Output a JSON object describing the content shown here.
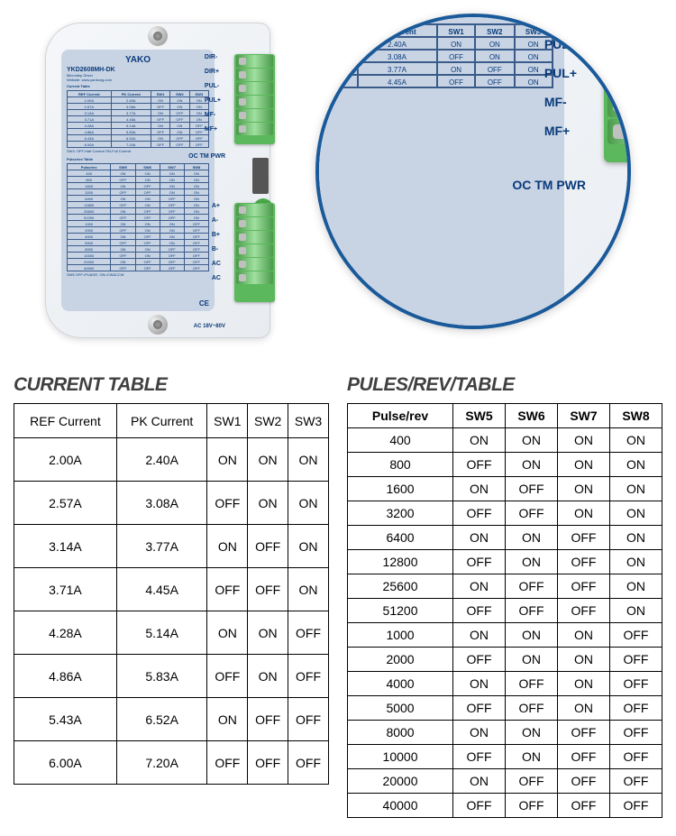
{
  "product": {
    "brand": "YAKO",
    "model": "YKD2608MH-DK",
    "type": "Microstep Driver",
    "website": "Website: www.yankong.com",
    "signal_label": "Signal +(5~24V)",
    "pc_label": "P&C Setting",
    "hv_label": "High Voltage",
    "signal_pins": [
      "DIR-",
      "DIR+",
      "PUL-",
      "PUL+",
      "MF-",
      "MF+"
    ],
    "sw_pins_top": [
      "SW9",
      "SW8",
      "SW7",
      "SW6",
      "SW5",
      "SW4",
      "SW3",
      "SW2",
      "SW1"
    ],
    "oc_tm_pwr": "OC  TM  PWR",
    "ac_note": "AC 18V~80V",
    "hv_pins": [
      "A+",
      "A-",
      "B+",
      "B-",
      "AC",
      "AC"
    ],
    "footer_note": "SW6 OFF=PU&DR, ON=CW&CCW",
    "sw4_note": "SW4: OFF-Half Current  ON-Full Current",
    "ce": "CE"
  },
  "current_table": {
    "title": "CURRENT TABLE",
    "columns": [
      "REF Current",
      "PK Current",
      "SW1",
      "SW2",
      "SW3"
    ],
    "rows": [
      [
        "2.00A",
        "2.40A",
        "ON",
        "ON",
        "ON"
      ],
      [
        "2.57A",
        "3.08A",
        "OFF",
        "ON",
        "ON"
      ],
      [
        "3.14A",
        "3.77A",
        "ON",
        "OFF",
        "ON"
      ],
      [
        "3.71A",
        "4.45A",
        "OFF",
        "OFF",
        "ON"
      ],
      [
        "4.28A",
        "5.14A",
        "ON",
        "ON",
        "OFF"
      ],
      [
        "4.86A",
        "5.83A",
        "OFF",
        "ON",
        "OFF"
      ],
      [
        "5.43A",
        "6.52A",
        "ON",
        "OFF",
        "OFF"
      ],
      [
        "6.00A",
        "7.20A",
        "OFF",
        "OFF",
        "OFF"
      ]
    ]
  },
  "pulse_table": {
    "title": "PULES/REV/TABLE",
    "columns": [
      "Pulse/rev",
      "SW5",
      "SW6",
      "SW7",
      "SW8"
    ],
    "rows": [
      [
        "400",
        "ON",
        "ON",
        "ON",
        "ON"
      ],
      [
        "800",
        "OFF",
        "ON",
        "ON",
        "ON"
      ],
      [
        "1600",
        "ON",
        "OFF",
        "ON",
        "ON"
      ],
      [
        "3200",
        "OFF",
        "OFF",
        "ON",
        "ON"
      ],
      [
        "6400",
        "ON",
        "ON",
        "OFF",
        "ON"
      ],
      [
        "12800",
        "OFF",
        "ON",
        "OFF",
        "ON"
      ],
      [
        "25600",
        "ON",
        "OFF",
        "OFF",
        "ON"
      ],
      [
        "51200",
        "OFF",
        "OFF",
        "OFF",
        "ON"
      ],
      [
        "1000",
        "ON",
        "ON",
        "ON",
        "OFF"
      ],
      [
        "2000",
        "OFF",
        "ON",
        "ON",
        "OFF"
      ],
      [
        "4000",
        "ON",
        "OFF",
        "ON",
        "OFF"
      ],
      [
        "5000",
        "OFF",
        "OFF",
        "ON",
        "OFF"
      ],
      [
        "8000",
        "ON",
        "ON",
        "OFF",
        "OFF"
      ],
      [
        "10000",
        "OFF",
        "ON",
        "OFF",
        "OFF"
      ],
      [
        "20000",
        "ON",
        "OFF",
        "OFF",
        "OFF"
      ],
      [
        "40000",
        "OFF",
        "OFF",
        "OFF",
        "OFF"
      ]
    ]
  },
  "mini_current": {
    "headers": [
      "REF Current",
      "PK Current",
      "SW1",
      "SW2",
      "SW3"
    ]
  },
  "mini_pulse": {
    "headers": [
      "Pulse/rev",
      "SW5",
      "SW6",
      "SW7",
      "SW8"
    ]
  },
  "styling": {
    "table_border_color": "#000000",
    "title_color": "#404040",
    "title_fontsize": 21,
    "body_fontsize": 14,
    "circle_border_color": "#1a5a9a",
    "circle_border_width": 4,
    "terminal_green": "#5cb85c",
    "label_blue": "#c8d4e4",
    "brand_blue": "#0a3a7a"
  }
}
